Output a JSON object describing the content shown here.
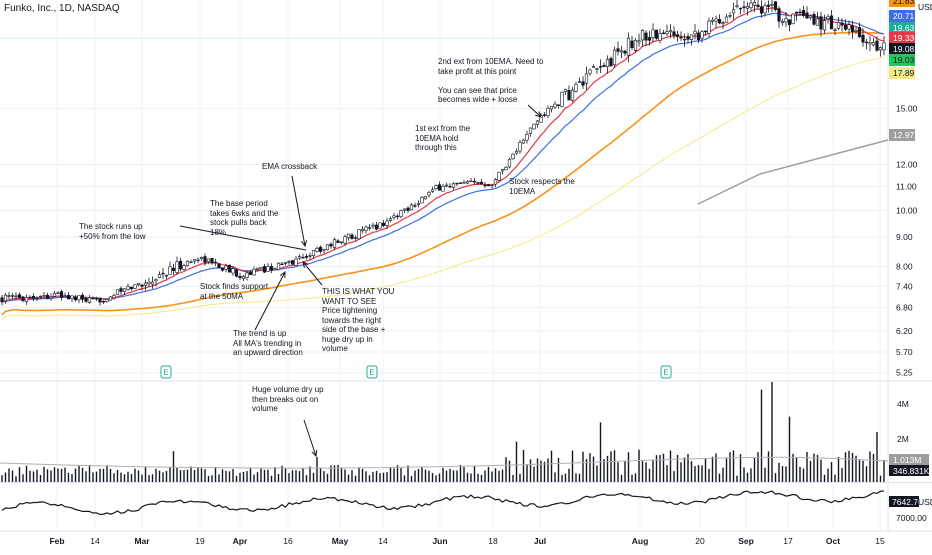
{
  "header": {
    "symbol_line": "Funko, Inc., 1D, NASDAQ"
  },
  "currency": "USD",
  "colors": {
    "up": "#ffffff",
    "down": "#131722",
    "ema10": "#e8364a",
    "ema21": "#3d6fe0",
    "sma50": "#f7931a",
    "sma100": "#f5ea82",
    "sma200": "#9e9e9e",
    "grid": "#eef0f4",
    "volume_ma": "#b0b0b0"
  },
  "annotations": [
    {
      "id": "runs-up",
      "text": "The stock runs up\n+50% from the low"
    },
    {
      "id": "base-period",
      "text": "The base period\ntakes 6wks and the\nstock pulls back\n18%"
    },
    {
      "id": "ema-crossback",
      "text": "EMA crossback"
    },
    {
      "id": "support-50ma",
      "text": "Stock finds support\nat the 50MA"
    },
    {
      "id": "trend-up",
      "text": "The trend is up\nAll MA's trending in\nan upward direction"
    },
    {
      "id": "what-you-want",
      "text": "THIS IS WHAT YOU\nWANT TO SEE\nPrice tightening\ntowards the right\nside of the base +\nhuge dry up in\nvolume"
    },
    {
      "id": "first-ext",
      "text": "1st ext from the\n10EMA hold\nthrough this"
    },
    {
      "id": "respects-10ema",
      "text": "Stock respects the\n10EMA"
    },
    {
      "id": "second-ext",
      "text": "2nd ext from 10EMA. Need to\ntake profit at this point\n\nYou can see that price\nbecomes wide + loose"
    },
    {
      "id": "volume-dry",
      "text": "Huge volume dry up\nthen breaks out on\nvolume"
    }
  ],
  "price_axis_ticks": [
    "15.00",
    "12.00",
    "11.00",
    "10.00",
    "9.00",
    "8.00",
    "7.40",
    "6.80",
    "6.20",
    "5.70",
    "5.25"
  ],
  "price_tags": [
    {
      "label": "21.83",
      "color": "#f7931a",
      "text_color": "#131722"
    },
    {
      "label": "20.71",
      "color": "#3d6fe0",
      "text_color": "#ffffff"
    },
    {
      "label": "19.63",
      "color": "#22ab94",
      "text_color": "#ffffff"
    },
    {
      "label": "19.33",
      "color": "#e8364a",
      "text_color": "#ffffff"
    },
    {
      "label": "19.08",
      "color": "#131722",
      "text_color": "#ffffff"
    },
    {
      "label": "19.03",
      "color": "#22c55e",
      "text_color": "#131722"
    },
    {
      "label": "17.89",
      "color": "#f5ea82",
      "text_color": "#131722"
    },
    {
      "label": "12.97",
      "color": "#9e9e9e",
      "text_color": "#ffffff"
    }
  ],
  "volume_axis_ticks": [
    "4M",
    "2M"
  ],
  "volume_tags": [
    {
      "label": "1.013M",
      "color": "#9e9e9e",
      "text_color": "#ffffff"
    },
    {
      "label": "346.831K",
      "color": "#131722",
      "text_color": "#ffffff"
    }
  ],
  "oscillator_axis_ticks": [
    "7000.00"
  ],
  "oscillator_tags": [
    {
      "label": "7642.70",
      "color": "#131722",
      "text_color": "#ffffff"
    }
  ],
  "time_axis_labels": [
    "Feb",
    "14",
    "Mar",
    "19",
    "Apr",
    "16",
    "May",
    "14",
    "Jun",
    "18",
    "Jul",
    "Aug",
    "20",
    "Sep",
    "17",
    "Oct",
    "15"
  ],
  "earnings_label": "E",
  "chart_data": {
    "type": "candlestick",
    "title": "Funko, Inc., 1D, NASDAQ",
    "y_scale": "log",
    "ylim": [
      5.1,
      22.0
    ],
    "x": [
      "Feb",
      "14",
      "Mar",
      "19",
      "Apr",
      "16",
      "May",
      "14",
      "Jun",
      "18",
      "Jul",
      "Aug",
      "20",
      "Sep",
      "17",
      "Oct",
      "15"
    ],
    "price_anchors": [
      {
        "x": "Feb",
        "close": 7.15
      },
      {
        "x": "14",
        "close": 6.95
      },
      {
        "x": "Mar",
        "close": 7.5
      },
      {
        "x": "19",
        "close": 8.3
      },
      {
        "x": "Apr",
        "close": 7.75
      },
      {
        "x": "16",
        "close": 8.1
      },
      {
        "x": "May",
        "close": 8.9
      },
      {
        "x": "14",
        "close": 9.5
      },
      {
        "x": "Jun",
        "close": 11.0
      },
      {
        "x": "18",
        "close": 11.2
      },
      {
        "x": "Jul",
        "close": 14.5
      },
      {
        "x": "Aug",
        "close": 20.0
      },
      {
        "x": "20",
        "close": 20.3
      },
      {
        "x": "Sep",
        "close": 23.0
      },
      {
        "x": "17",
        "close": 21.5
      },
      {
        "x": "Oct",
        "close": 21.0
      },
      {
        "x": "15",
        "close": 19.08
      }
    ],
    "volume": {
      "ticks": [
        "4M",
        "2M"
      ],
      "last": "346.831K",
      "ma": "1.013M"
    },
    "oscillator": {
      "ticks": [
        "7000.00"
      ],
      "last": "7642.70"
    }
  }
}
